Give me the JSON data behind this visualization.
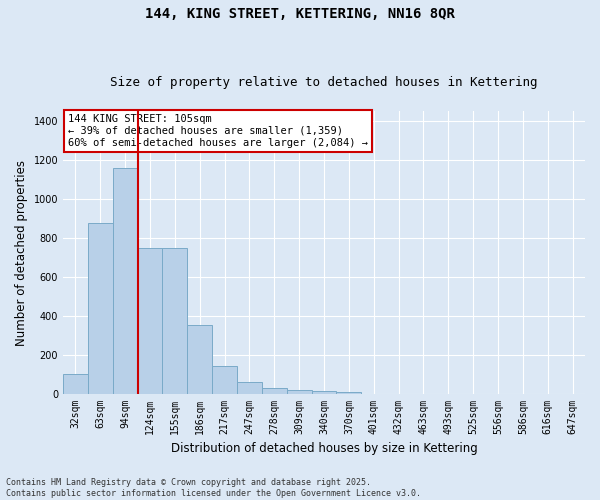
{
  "title_line1": "144, KING STREET, KETTERING, NN16 8QR",
  "title_line2": "Size of property relative to detached houses in Kettering",
  "xlabel": "Distribution of detached houses by size in Kettering",
  "ylabel": "Number of detached properties",
  "categories": [
    "32sqm",
    "63sqm",
    "94sqm",
    "124sqm",
    "155sqm",
    "186sqm",
    "217sqm",
    "247sqm",
    "278sqm",
    "309sqm",
    "340sqm",
    "370sqm",
    "401sqm",
    "432sqm",
    "463sqm",
    "493sqm",
    "525sqm",
    "556sqm",
    "586sqm",
    "616sqm",
    "647sqm"
  ],
  "values": [
    100,
    875,
    1160,
    750,
    750,
    350,
    140,
    60,
    28,
    20,
    12,
    8,
    0,
    0,
    0,
    0,
    0,
    0,
    0,
    0,
    0
  ],
  "bar_color": "#b8d0e8",
  "bar_edge_color": "#7aaac8",
  "vline_color": "#cc0000",
  "vline_x": 2.5,
  "annotation_title": "144 KING STREET: 105sqm",
  "annotation_line2": "← 39% of detached houses are smaller (1,359)",
  "annotation_line3": "60% of semi-detached houses are larger (2,084) →",
  "annotation_box_color": "#cc0000",
  "annotation_bg": "#ffffff",
  "ylim": [
    0,
    1450
  ],
  "yticks": [
    0,
    200,
    400,
    600,
    800,
    1000,
    1200,
    1400
  ],
  "bg_color": "#dce8f5",
  "plot_bg_color": "#dce8f5",
  "footer_line1": "Contains HM Land Registry data © Crown copyright and database right 2025.",
  "footer_line2": "Contains public sector information licensed under the Open Government Licence v3.0.",
  "grid_color": "#ffffff",
  "title_fontsize": 10,
  "subtitle_fontsize": 9,
  "axis_label_fontsize": 8.5,
  "tick_fontsize": 7,
  "annotation_fontsize": 7.5
}
